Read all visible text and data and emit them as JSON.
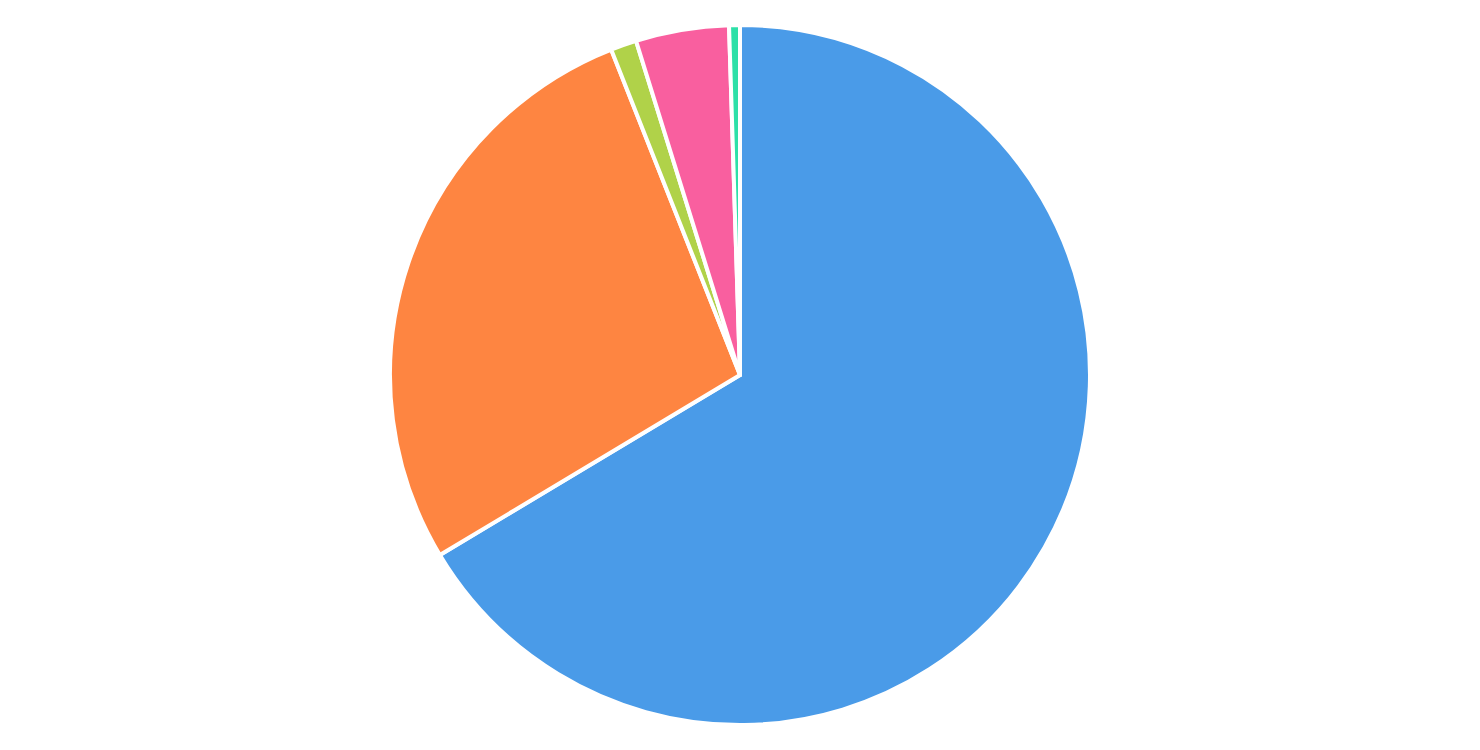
{
  "chart_data": {
    "type": "pie",
    "categories": [
      null,
      null,
      null,
      null,
      null
    ],
    "values": [
      66.4,
      27.6,
      1.2,
      4.3,
      0.5
    ],
    "colors": [
      "#4a9be8",
      "#fe8541",
      "#b0d249",
      "#f95f9f",
      "#2de0a8"
    ],
    "legend": false
  }
}
